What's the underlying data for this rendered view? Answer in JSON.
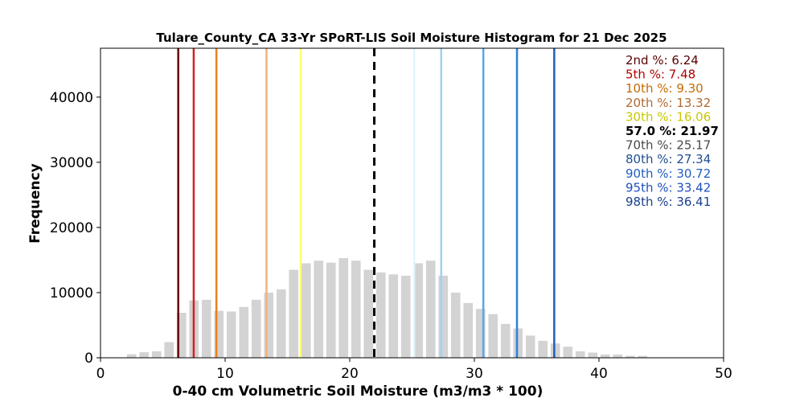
{
  "chart_data": {
    "type": "bar",
    "title": "Tulare_County_CA 33-Yr SPoRT-LIS Soil Moisture Histogram for 21 Dec 2025",
    "xlabel": "0-40 cm Volumetric Soil Moisture (m3/m3 * 100)",
    "ylabel": "Frequency",
    "xlim": [
      0,
      50
    ],
    "ylim": [
      0,
      47500
    ],
    "xticks": [
      0,
      10,
      20,
      30,
      40,
      50
    ],
    "yticks": [
      0,
      10000,
      20000,
      30000,
      40000
    ],
    "bar_color": "#d3d3d3",
    "bar_width": 0.75,
    "bins": [
      {
        "x": 2.5,
        "value": 550
      },
      {
        "x": 3.5,
        "value": 850
      },
      {
        "x": 4.5,
        "value": 1000
      },
      {
        "x": 5.5,
        "value": 2400
      },
      {
        "x": 6.5,
        "value": 6900
      },
      {
        "x": 7.5,
        "value": 8800
      },
      {
        "x": 8.5,
        "value": 8900
      },
      {
        "x": 9.5,
        "value": 7200
      },
      {
        "x": 10.5,
        "value": 7100
      },
      {
        "x": 11.5,
        "value": 7800
      },
      {
        "x": 12.5,
        "value": 8900
      },
      {
        "x": 13.5,
        "value": 10000
      },
      {
        "x": 14.5,
        "value": 10500
      },
      {
        "x": 15.5,
        "value": 13500
      },
      {
        "x": 16.5,
        "value": 14500
      },
      {
        "x": 17.5,
        "value": 14900
      },
      {
        "x": 18.5,
        "value": 14600
      },
      {
        "x": 19.5,
        "value": 15300
      },
      {
        "x": 20.5,
        "value": 14900
      },
      {
        "x": 21.5,
        "value": 13500
      },
      {
        "x": 22.5,
        "value": 13100
      },
      {
        "x": 23.5,
        "value": 12800
      },
      {
        "x": 24.5,
        "value": 12600
      },
      {
        "x": 25.5,
        "value": 14500
      },
      {
        "x": 26.5,
        "value": 14900
      },
      {
        "x": 27.5,
        "value": 12600
      },
      {
        "x": 28.5,
        "value": 10000
      },
      {
        "x": 29.5,
        "value": 8400
      },
      {
        "x": 30.5,
        "value": 7500
      },
      {
        "x": 31.5,
        "value": 6700
      },
      {
        "x": 32.5,
        "value": 5200
      },
      {
        "x": 33.5,
        "value": 4500
      },
      {
        "x": 34.5,
        "value": 3400
      },
      {
        "x": 35.5,
        "value": 2600
      },
      {
        "x": 36.5,
        "value": 2200
      },
      {
        "x": 37.5,
        "value": 1700
      },
      {
        "x": 38.5,
        "value": 1000
      },
      {
        "x": 39.5,
        "value": 800
      },
      {
        "x": 40.5,
        "value": 500
      },
      {
        "x": 41.5,
        "value": 500
      },
      {
        "x": 42.5,
        "value": 300
      },
      {
        "x": 43.5,
        "value": 300
      }
    ],
    "percentile_lines": [
      {
        "label": "2nd %: 6.24",
        "value": 6.24,
        "color": "#6b0000",
        "dashed": false
      },
      {
        "label": "5th %: 7.48",
        "value": 7.48,
        "color": "#d62020",
        "dashed": false
      },
      {
        "label": "10th %: 9.30",
        "value": 9.3,
        "color": "#e8821e",
        "dashed": false
      },
      {
        "label": "20th %: 13.32",
        "value": 13.32,
        "color": "#f5b27a",
        "dashed": false
      },
      {
        "label": "30th %: 16.06",
        "value": 16.06,
        "color": "#ffff66",
        "dashed": false
      },
      {
        "label": "57.0 %: 21.97",
        "value": 21.97,
        "color": "#000000",
        "dashed": true
      },
      {
        "label": "70th %: 25.17",
        "value": 25.17,
        "color": "#e0f7fb",
        "dashed": false
      },
      {
        "label": "80th %: 27.34",
        "value": 27.34,
        "color": "#9ed2f2",
        "dashed": false
      },
      {
        "label": "90th %: 30.72",
        "value": 30.72,
        "color": "#5aa6e8",
        "dashed": false
      },
      {
        "label": "95th %: 33.42",
        "value": 33.42,
        "color": "#2f7fdc",
        "dashed": false
      },
      {
        "label": "98th %: 36.41",
        "value": 36.41,
        "color": "#1f5fbf",
        "dashed": false
      }
    ],
    "legend_text_colors": [
      "#5a0000",
      "#b00000",
      "#c46a00",
      "#b06a30",
      "#c8c800",
      "#000000",
      "#4a4a4a",
      "#1f4f8f",
      "#1f5fbf",
      "#1f4fbf",
      "#1a3f8f"
    ],
    "legend_placement": "top-right",
    "grid": false
  }
}
